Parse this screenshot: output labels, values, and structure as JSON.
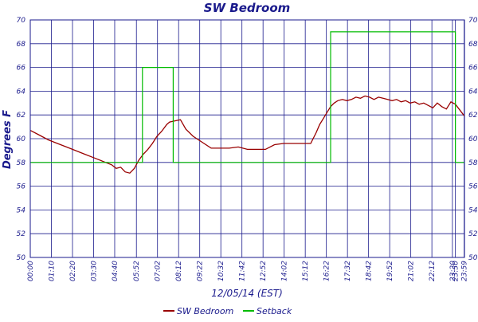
{
  "chart_data": {
    "type": "line",
    "title": "SW Bedroom",
    "xlabel": "12/05/14 (EST)",
    "ylabel": "Degrees F",
    "ylim": [
      50,
      70
    ],
    "yticks": [
      "50",
      "52",
      "54",
      "56",
      "58",
      "60",
      "62",
      "64",
      "66",
      "68",
      "70"
    ],
    "xlim": [
      0,
      24
    ],
    "xticks": [
      {
        "h": 0.0,
        "label": "00:00"
      },
      {
        "h": 1.1667,
        "label": "01:10"
      },
      {
        "h": 2.3333,
        "label": "02:20"
      },
      {
        "h": 3.5,
        "label": "03:30"
      },
      {
        "h": 4.6667,
        "label": "04:40"
      },
      {
        "h": 5.8667,
        "label": "05:52"
      },
      {
        "h": 7.0333,
        "label": "07:02"
      },
      {
        "h": 8.2,
        "label": "08:12"
      },
      {
        "h": 9.3667,
        "label": "09:22"
      },
      {
        "h": 10.5333,
        "label": "10:32"
      },
      {
        "h": 11.7,
        "label": "11:42"
      },
      {
        "h": 12.8667,
        "label": "12:52"
      },
      {
        "h": 14.0333,
        "label": "14:02"
      },
      {
        "h": 15.2,
        "label": "15:12"
      },
      {
        "h": 16.3667,
        "label": "16:22"
      },
      {
        "h": 17.5333,
        "label": "17:32"
      },
      {
        "h": 18.7,
        "label": "18:42"
      },
      {
        "h": 19.8667,
        "label": "19:52"
      },
      {
        "h": 21.0333,
        "label": "21:02"
      },
      {
        "h": 22.2,
        "label": "22:12"
      },
      {
        "h": 23.3333,
        "label": "23:20"
      },
      {
        "h": 23.5,
        "label": "23:30"
      },
      {
        "h": 23.9833,
        "label": "23:59"
      }
    ],
    "grid": true,
    "legend_position": "bottom",
    "series": [
      {
        "name": "SW Bedroom",
        "color": "#990000",
        "x": [
          0.0,
          0.5,
          1.0,
          1.5,
          2.0,
          2.5,
          3.0,
          3.5,
          4.0,
          4.5,
          4.75,
          5.0,
          5.25,
          5.5,
          5.75,
          6.0,
          6.25,
          6.5,
          6.75,
          7.0,
          7.25,
          7.4,
          7.55,
          7.7,
          8.0,
          8.3,
          8.6,
          9.0,
          10.0,
          11.0,
          11.5,
          12.0,
          12.5,
          13.0,
          13.5,
          14.0,
          14.5,
          15.0,
          15.5,
          15.8,
          16.0,
          16.2,
          16.4,
          16.6,
          16.8,
          17.0,
          17.25,
          17.5,
          17.75,
          18.0,
          18.25,
          18.5,
          18.75,
          19.0,
          19.25,
          19.5,
          19.75,
          20.0,
          20.25,
          20.5,
          20.75,
          21.0,
          21.25,
          21.5,
          21.75,
          22.0,
          22.25,
          22.5,
          22.75,
          23.0,
          23.25,
          23.5,
          23.75,
          24.0
        ],
        "y": [
          60.7,
          60.3,
          59.9,
          59.6,
          59.3,
          59.0,
          58.7,
          58.4,
          58.1,
          57.8,
          57.5,
          57.6,
          57.2,
          57.1,
          57.5,
          58.2,
          58.7,
          59.1,
          59.6,
          60.2,
          60.6,
          60.9,
          61.2,
          61.4,
          61.5,
          61.6,
          60.8,
          60.2,
          59.2,
          59.2,
          59.3,
          59.1,
          59.1,
          59.1,
          59.5,
          59.6,
          59.6,
          59.6,
          59.6,
          60.5,
          61.2,
          61.7,
          62.2,
          62.7,
          63.0,
          63.2,
          63.3,
          63.2,
          63.3,
          63.5,
          63.4,
          63.6,
          63.5,
          63.3,
          63.5,
          63.4,
          63.3,
          63.2,
          63.3,
          63.1,
          63.2,
          63.0,
          63.1,
          62.9,
          63.0,
          62.8,
          62.6,
          63.0,
          62.7,
          62.5,
          63.1,
          62.9,
          62.4,
          61.9
        ]
      },
      {
        "name": "Setback",
        "color": "#00bb00",
        "x": [
          0.0,
          6.2,
          6.2,
          7.9,
          7.9,
          16.6,
          16.6,
          23.5,
          23.5,
          24.0
        ],
        "y": [
          58,
          58,
          66,
          66,
          58,
          58,
          69,
          69,
          58,
          58
        ]
      }
    ]
  }
}
